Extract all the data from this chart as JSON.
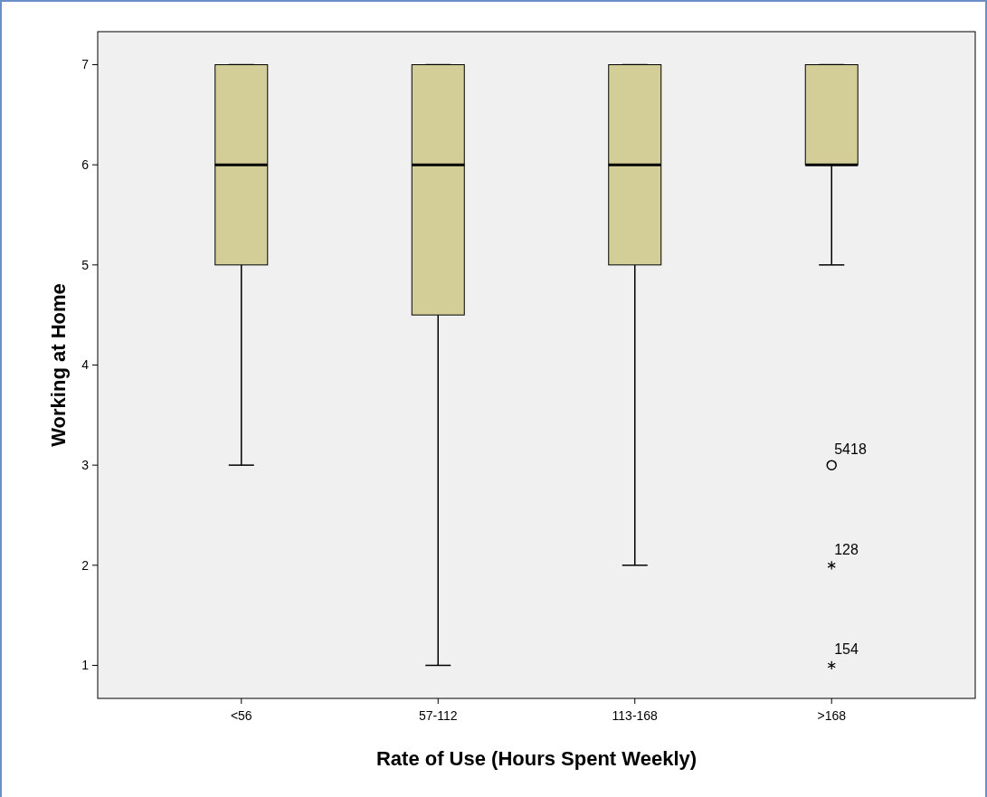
{
  "chart_data": {
    "type": "box",
    "xlabel": "Rate of Use (Hours Spent Weekly)",
    "ylabel": "Working at Home",
    "categories": [
      "<56",
      "57-112",
      "113-168",
      ">168"
    ],
    "color": "#d3ce97",
    "ylim": [
      0.67,
      7.33
    ],
    "yticks": [
      1,
      2,
      3,
      4,
      5,
      6,
      7
    ],
    "grid": false,
    "boxes": [
      {
        "low": 3,
        "q1": 5,
        "median": 6,
        "q3": 7,
        "high": 7
      },
      {
        "low": 1,
        "q1": 4.5,
        "median": 6,
        "q3": 7,
        "high": 7
      },
      {
        "low": 2,
        "q1": 5,
        "median": 6,
        "q3": 7,
        "high": 7
      },
      {
        "low": 5,
        "q1": 6,
        "median": 6,
        "q3": 7,
        "high": 7,
        "outliers": [
          3,
          2,
          1
        ]
      }
    ],
    "annotations": [
      "5418",
      "128",
      "154"
    ]
  }
}
